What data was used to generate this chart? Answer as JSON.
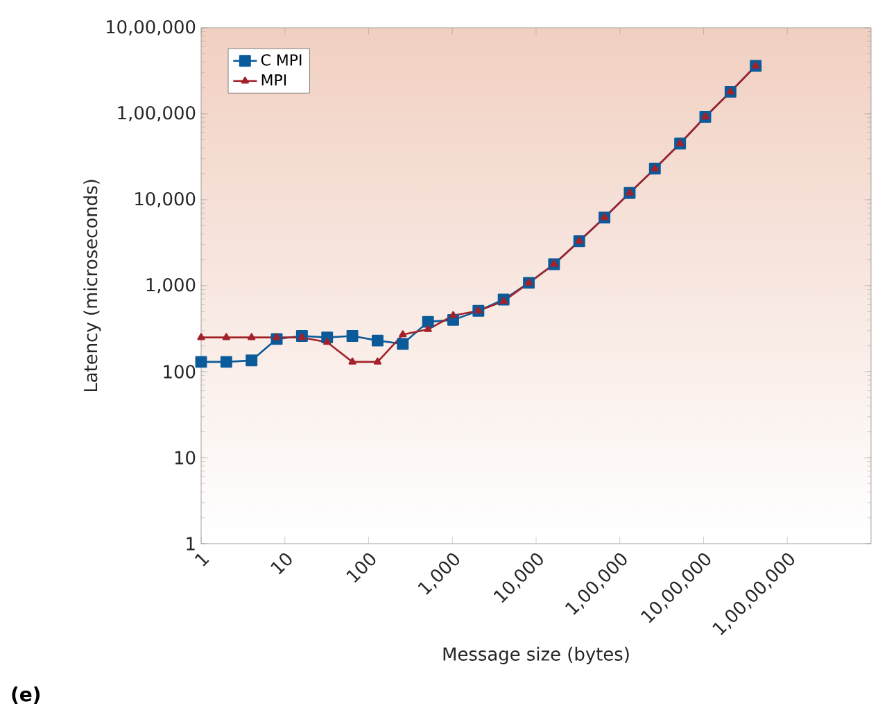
{
  "chart_data": {
    "type": "line",
    "xlabel": "Message size (bytes)",
    "ylabel": "Latency (microseconds)",
    "x": [
      1,
      2,
      4,
      8,
      16,
      32,
      64,
      128,
      256,
      512,
      1024,
      2048,
      4096,
      8192,
      16384,
      32768,
      65536,
      131072,
      262144,
      524288,
      1048576,
      2097152,
      4194304
    ],
    "series": [
      {
        "name": "C MPI",
        "color": "#0b5a9a",
        "marker": "square",
        "values": [
          130,
          130,
          135,
          240,
          260,
          250,
          260,
          230,
          210,
          380,
          400,
          510,
          690,
          1080,
          1780,
          3300,
          6200,
          12000,
          23000,
          45000,
          92000,
          180000,
          360000
        ]
      },
      {
        "name": "MPI",
        "color": "#a3222a",
        "marker": "triangle",
        "values": [
          250,
          250,
          250,
          250,
          250,
          220,
          130,
          130,
          270,
          310,
          450,
          510,
          660,
          1080,
          1780,
          3300,
          6200,
          12000,
          23000,
          45000,
          92000,
          180000,
          360000
        ]
      }
    ],
    "log": "xy",
    "xlim": [
      1,
      100000000
    ],
    "ylim": [
      1,
      1000000
    ],
    "xticks": [
      1,
      10,
      100,
      {
        "value": 1000,
        "label": "1,000"
      },
      {
        "value": 10000,
        "label": "10,000"
      },
      {
        "value": 100000,
        "label": "1,00,000"
      },
      {
        "value": 1000000,
        "label": "10,00,000"
      },
      {
        "value": 10000000,
        "label": "1,00,00,000"
      }
    ],
    "yticks": [
      1,
      10,
      100,
      {
        "value": 1000,
        "label": "1,000"
      },
      {
        "value": 10000,
        "label": "10,000"
      },
      {
        "value": 100000,
        "label": "1,00,000"
      },
      {
        "value": 1000000,
        "label": "10,00,000"
      }
    ],
    "legend": "top left",
    "grid": false,
    "line_style": "solid",
    "annotations": [
      "(e)"
    ]
  }
}
